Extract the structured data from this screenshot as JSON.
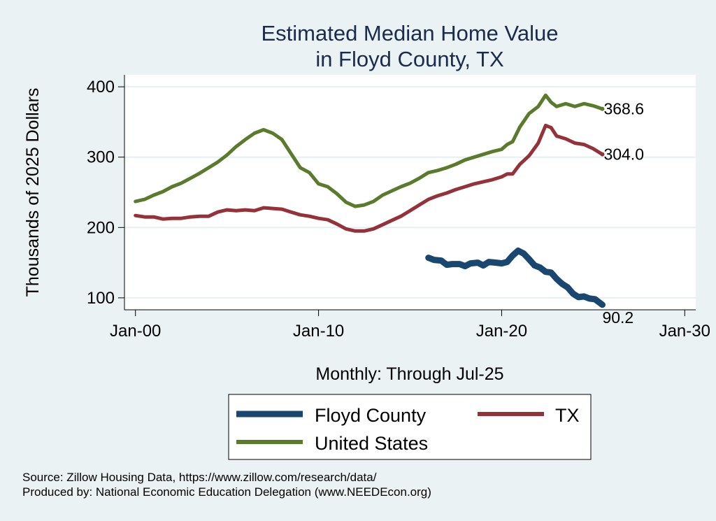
{
  "chart_data": {
    "type": "line",
    "title": [
      "Estimated Median Home Value",
      "in Floyd County, TX"
    ],
    "xlabel": "Monthly: Through Jul-25",
    "ylabel": "Thousands of 2025 Dollars",
    "x_ticks": [
      {
        "value": 2000,
        "label": "Jan-00"
      },
      {
        "value": 2010,
        "label": "Jan-10"
      },
      {
        "value": 2020,
        "label": "Jan-20"
      },
      {
        "value": 2030,
        "label": "Jan-30"
      }
    ],
    "y_ticks": [
      100,
      200,
      300,
      400
    ],
    "xlim": [
      1999.4,
      2030.6
    ],
    "ylim": [
      83,
      417
    ],
    "grid": true,
    "legend_position": "bottom",
    "series": [
      {
        "name": "Floyd County",
        "color": "#1a4770",
        "end_label": "90.2",
        "x": [
          2016.0,
          2016.3,
          2016.7,
          2017.0,
          2017.3,
          2017.7,
          2018.0,
          2018.3,
          2018.7,
          2019.0,
          2019.3,
          2019.7,
          2020.0,
          2020.3,
          2020.6,
          2020.9,
          2021.2,
          2021.5,
          2021.8,
          2022.1,
          2022.4,
          2022.7,
          2023.0,
          2023.3,
          2023.6,
          2023.9,
          2024.2,
          2024.5,
          2024.8,
          2025.1,
          2025.5
        ],
        "y": [
          157,
          154,
          153,
          147,
          148,
          148,
          145,
          149,
          150,
          146,
          151,
          150,
          149,
          151,
          160,
          167,
          163,
          155,
          146,
          143,
          137,
          136,
          127,
          120,
          115,
          106,
          101,
          102,
          99,
          98,
          90.2
        ]
      },
      {
        "name": "TX",
        "color": "#943139",
        "end_label": "304.0",
        "x": [
          2000.0,
          2000.5,
          2001.0,
          2001.5,
          2002.0,
          2002.5,
          2003.0,
          2003.5,
          2004.0,
          2004.5,
          2005.0,
          2005.5,
          2006.0,
          2006.5,
          2007.0,
          2007.5,
          2008.0,
          2008.5,
          2009.0,
          2009.5,
          2010.0,
          2010.5,
          2011.0,
          2011.5,
          2012.0,
          2012.5,
          2013.0,
          2013.5,
          2014.0,
          2014.5,
          2015.0,
          2015.5,
          2016.0,
          2016.5,
          2017.0,
          2017.5,
          2018.0,
          2018.5,
          2019.0,
          2019.5,
          2020.0,
          2020.3,
          2020.6,
          2021.0,
          2021.5,
          2022.0,
          2022.4,
          2022.7,
          2023.0,
          2023.5,
          2024.0,
          2024.5,
          2025.0,
          2025.5
        ],
        "y": [
          217,
          215,
          215,
          212,
          213,
          213,
          215,
          216,
          216,
          222,
          225,
          224,
          225,
          224,
          228,
          227,
          226,
          222,
          218,
          216,
          213,
          211,
          205,
          198,
          195,
          195,
          198,
          204,
          210,
          216,
          224,
          232,
          240,
          245,
          249,
          254,
          258,
          262,
          265,
          268,
          272,
          276,
          276,
          290,
          302,
          320,
          345,
          342,
          330,
          326,
          320,
          318,
          312,
          304.0
        ]
      },
      {
        "name": "United States",
        "color": "#5a7a2c",
        "end_label": "368.6",
        "x": [
          2000.0,
          2000.5,
          2001.0,
          2001.5,
          2002.0,
          2002.5,
          2003.0,
          2003.5,
          2004.0,
          2004.5,
          2005.0,
          2005.5,
          2006.0,
          2006.5,
          2007.0,
          2007.5,
          2008.0,
          2008.5,
          2009.0,
          2009.5,
          2010.0,
          2010.5,
          2011.0,
          2011.5,
          2012.0,
          2012.5,
          2013.0,
          2013.5,
          2014.0,
          2014.5,
          2015.0,
          2015.5,
          2016.0,
          2016.5,
          2017.0,
          2017.5,
          2018.0,
          2018.5,
          2019.0,
          2019.5,
          2020.0,
          2020.3,
          2020.6,
          2021.0,
          2021.5,
          2022.0,
          2022.4,
          2022.7,
          2023.0,
          2023.5,
          2024.0,
          2024.5,
          2025.0,
          2025.5
        ],
        "y": [
          237,
          240,
          246,
          251,
          258,
          263,
          270,
          277,
          285,
          293,
          303,
          315,
          325,
          334,
          339,
          334,
          325,
          305,
          285,
          278,
          262,
          258,
          248,
          236,
          230,
          232,
          237,
          246,
          252,
          258,
          263,
          270,
          278,
          281,
          285,
          290,
          296,
          300,
          304,
          308,
          311,
          318,
          322,
          343,
          362,
          372,
          388,
          378,
          372,
          376,
          372,
          376,
          373,
          368.6
        ]
      }
    ]
  },
  "footer": {
    "source": "Source: Zillow Housing Data, https://www.zillow.com/research/data/",
    "produced_by": "Produced by: National Economic Education Delegation (www.NEEDEcon.org)"
  }
}
